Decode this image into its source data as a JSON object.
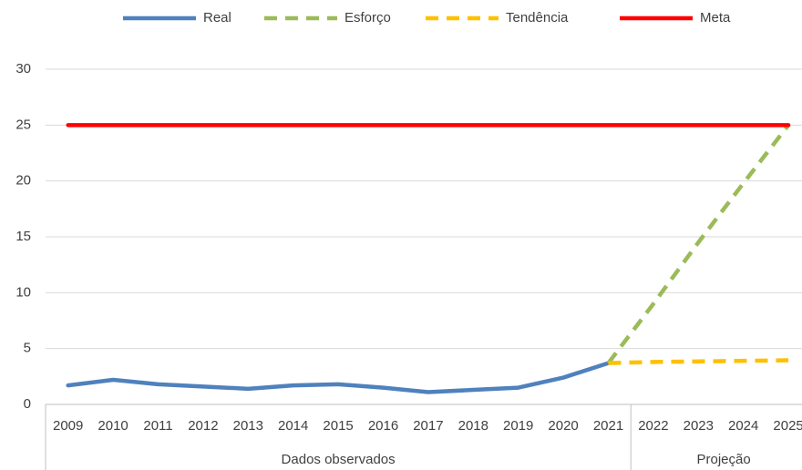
{
  "chart_data": {
    "type": "line",
    "categories": [
      "2009",
      "2010",
      "2011",
      "2012",
      "2013",
      "2014",
      "2015",
      "2016",
      "2017",
      "2018",
      "2019",
      "2020",
      "2021",
      "2022",
      "2023",
      "2024",
      "2025"
    ],
    "groups": [
      {
        "label": "Dados observados",
        "count": 13
      },
      {
        "label": "Projeção",
        "count": 4
      }
    ],
    "series": [
      {
        "name": "Real",
        "color": "#4f81bd",
        "dash": false,
        "values": [
          1.7,
          2.2,
          1.8,
          1.6,
          1.4,
          1.7,
          1.8,
          1.5,
          1.1,
          1.3,
          1.5,
          2.4,
          3.7,
          null,
          null,
          null,
          null
        ]
      },
      {
        "name": "Esforço",
        "color": "#9bbb59",
        "dash": true,
        "values": [
          null,
          null,
          null,
          null,
          null,
          null,
          null,
          null,
          null,
          null,
          null,
          null,
          3.7,
          9,
          14.5,
          19.8,
          25
        ]
      },
      {
        "name": "Tendência",
        "color": "#ffc000",
        "dash": true,
        "values": [
          null,
          null,
          null,
          null,
          null,
          null,
          null,
          null,
          null,
          null,
          null,
          null,
          3.7,
          3.8,
          3.85,
          3.9,
          3.95
        ]
      },
      {
        "name": "Meta",
        "color": "#ff0000",
        "dash": false,
        "values": [
          25,
          25,
          25,
          25,
          25,
          25,
          25,
          25,
          25,
          25,
          25,
          25,
          25,
          25,
          25,
          25,
          25
        ]
      }
    ],
    "ylim": [
      0,
      30
    ],
    "yticks": [
      0,
      5,
      10,
      15,
      20,
      25,
      30
    ],
    "grid": true,
    "legend": "top"
  }
}
